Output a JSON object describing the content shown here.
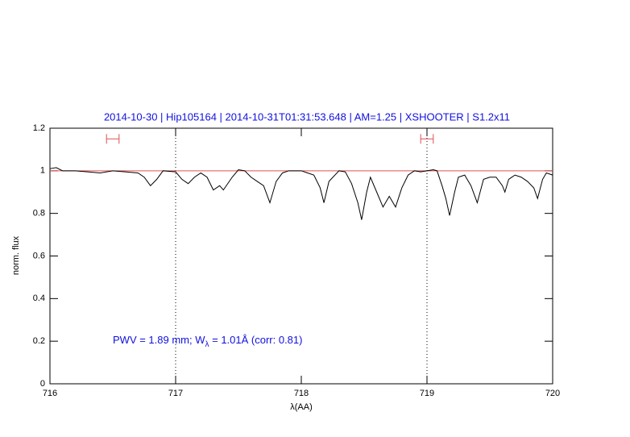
{
  "chart_data": {
    "type": "line",
    "title": "2014-10-30 | Hip105164 | 2014-10-31T01:31:53.648 | AM=1.25 | XSHOOTER | S1.2x11",
    "xlabel": "λ(AA)",
    "ylabel": "norm. flux",
    "annotation": [
      "PWV = 1.89 mm; W",
      "λ",
      " = 1.01Å (corr: 0.81)"
    ],
    "x": [
      716.0,
      716.05,
      716.1,
      716.2,
      716.3,
      716.4,
      716.5,
      716.6,
      716.7,
      716.75,
      716.8,
      716.85,
      716.9,
      717.0,
      717.05,
      717.1,
      717.15,
      717.2,
      717.25,
      717.3,
      717.35,
      717.38,
      717.45,
      717.5,
      717.55,
      717.6,
      717.65,
      717.7,
      717.75,
      717.8,
      717.85,
      717.9,
      718.0,
      718.1,
      718.15,
      718.18,
      718.22,
      718.3,
      718.35,
      718.4,
      718.45,
      718.48,
      718.52,
      718.55,
      718.6,
      718.65,
      718.7,
      718.75,
      718.8,
      718.85,
      718.9,
      718.95,
      719.0,
      719.05,
      719.08,
      719.12,
      719.15,
      719.18,
      719.22,
      719.25,
      719.3,
      719.35,
      719.4,
      719.45,
      719.5,
      719.55,
      719.6,
      719.62,
      719.65,
      719.7,
      719.75,
      719.8,
      719.85,
      719.88,
      719.92,
      719.95,
      720.0
    ],
    "values": [
      1.01,
      1.015,
      1.0,
      1.0,
      0.995,
      0.99,
      1.0,
      0.995,
      0.99,
      0.97,
      0.93,
      0.96,
      1.0,
      0.995,
      0.96,
      0.94,
      0.97,
      0.99,
      0.97,
      0.91,
      0.93,
      0.91,
      0.97,
      1.005,
      1.0,
      0.97,
      0.95,
      0.93,
      0.85,
      0.95,
      0.99,
      1.0,
      1.0,
      0.98,
      0.92,
      0.85,
      0.95,
      1.0,
      0.995,
      0.94,
      0.85,
      0.77,
      0.9,
      0.97,
      0.9,
      0.83,
      0.88,
      0.83,
      0.92,
      0.98,
      1.0,
      0.995,
      1.0,
      1.005,
      1.0,
      0.93,
      0.87,
      0.79,
      0.9,
      0.97,
      0.98,
      0.93,
      0.85,
      0.96,
      0.97,
      0.97,
      0.93,
      0.9,
      0.96,
      0.98,
      0.97,
      0.95,
      0.92,
      0.87,
      0.96,
      0.99,
      0.98
    ],
    "color": "#000000",
    "continuum": 1,
    "continuum_color": "#e05050",
    "vlines": [
      717,
      719
    ],
    "intervals": [
      [
        716.45,
        716.55
      ],
      [
        718.95,
        719.05
      ]
    ],
    "interval_level": 1.15,
    "interval_color": "#e05050",
    "xlim": [
      716,
      720
    ],
    "ylim": [
      0,
      1.2
    ],
    "xticks": [
      716,
      717,
      718,
      719,
      720
    ],
    "yticks": [
      0,
      0.2,
      0.4,
      0.6,
      0.8,
      1,
      1.2
    ]
  }
}
